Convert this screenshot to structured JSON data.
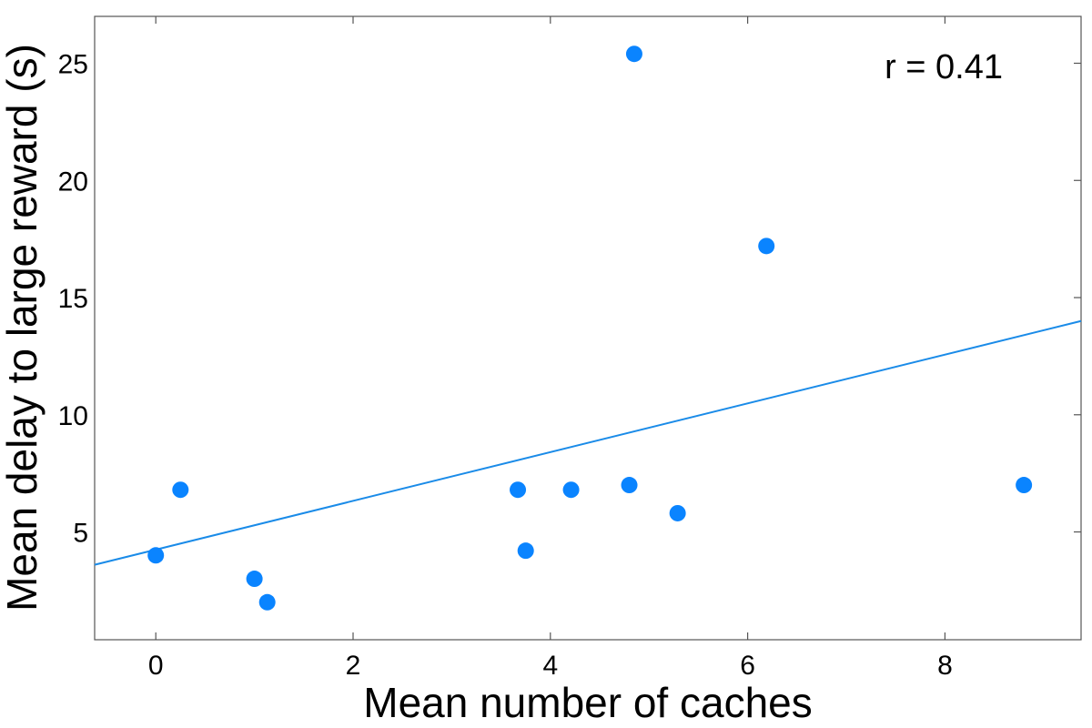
{
  "chart_data": {
    "type": "scatter",
    "xlabel": "Mean number of caches",
    "ylabel": "Mean delay to large reward (s)",
    "xlim": [
      -0.62,
      9.38
    ],
    "ylim": [
      0.4,
      27.0
    ],
    "x_ticks": [
      0,
      2,
      4,
      6,
      8
    ],
    "y_ticks": [
      5,
      10,
      15,
      20,
      25
    ],
    "x_tick_labels": [
      "0",
      "2",
      "4",
      "6",
      "8"
    ],
    "y_tick_labels": [
      "5",
      "10",
      "15",
      "20",
      "25"
    ],
    "grid": false,
    "points": [
      {
        "x": 0.0,
        "y": 4.0
      },
      {
        "x": 0.25,
        "y": 6.8
      },
      {
        "x": 1.0,
        "y": 3.0
      },
      {
        "x": 1.13,
        "y": 2.0
      },
      {
        "x": 3.67,
        "y": 6.8
      },
      {
        "x": 3.75,
        "y": 4.2
      },
      {
        "x": 4.21,
        "y": 6.8
      },
      {
        "x": 4.8,
        "y": 7.0
      },
      {
        "x": 4.85,
        "y": 25.4
      },
      {
        "x": 5.29,
        "y": 5.8
      },
      {
        "x": 6.19,
        "y": 17.2
      },
      {
        "x": 8.8,
        "y": 7.0
      }
    ],
    "regression_line": {
      "x": [
        -0.62,
        9.38
      ],
      "y": [
        3.6,
        14.0
      ]
    },
    "annotation": "r = 0.41",
    "colors": {
      "points": "#0a84ff",
      "line": "#1a8be8",
      "axes": "#555555"
    }
  }
}
